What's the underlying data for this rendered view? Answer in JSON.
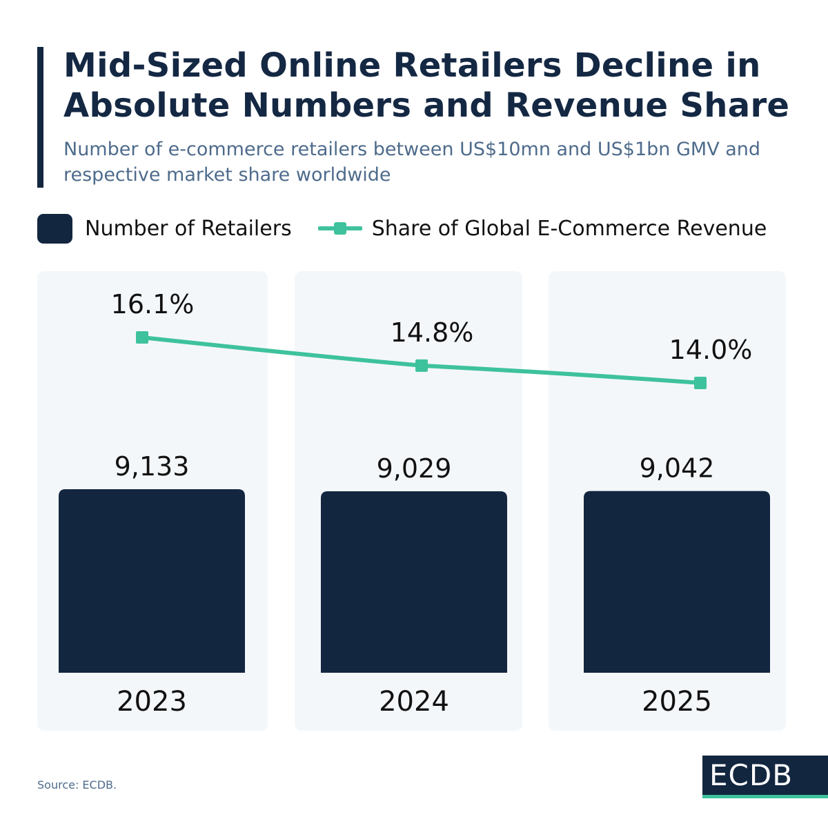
{
  "title": "Mid-Sized Online Retailers Decline in Absolute Numbers and Revenue Share",
  "subtitle": "Number of e-commerce retailers between US$10mn and US$1bn GMV and respective market share worldwide",
  "source": "Source: ECDB.",
  "logo": "ECDB",
  "colors": {
    "bar": "#13263f",
    "line": "#3ec29d",
    "panel": "#f4f7fa",
    "title": "#142843",
    "subtitle": "#4e6b8b"
  },
  "chart_data": {
    "type": "bar+line",
    "categories": [
      "2023",
      "2024",
      "2025"
    ],
    "legend_position": "top-left",
    "grid": false,
    "series": [
      {
        "name": "Number of Retailers",
        "type": "bar",
        "values": [
          9133,
          9029,
          9042
        ],
        "labels": [
          "9,133",
          "9,029",
          "9,042"
        ]
      },
      {
        "name": "Share of Global E-Commerce Revenue",
        "type": "line",
        "values": [
          16.1,
          14.8,
          14.0
        ],
        "labels": [
          "16.1%",
          "14.8%",
          "14.0%"
        ],
        "unit": "%"
      }
    ]
  }
}
